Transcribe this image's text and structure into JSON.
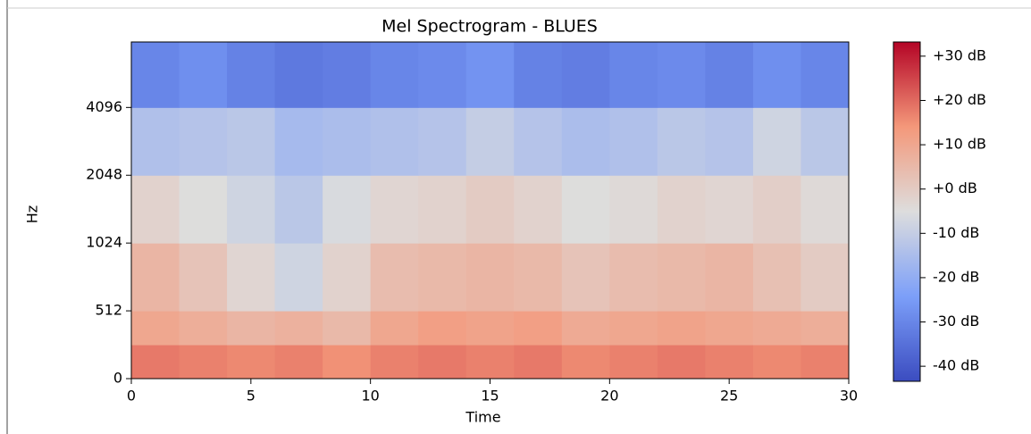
{
  "chart_data": {
    "type": "heatmap",
    "title": "Mel Spectrogram - BLUES",
    "x_label": "Time",
    "y_label": "Hz",
    "xlim": [
      0,
      30
    ],
    "xticks": [
      0,
      5,
      10,
      15,
      20,
      25,
      30
    ],
    "ylim": [
      0,
      8000
    ],
    "yticks": [
      0,
      512,
      1024,
      2048,
      4096
    ],
    "yscale": "mel",
    "x_edges": [
      0,
      2,
      4,
      6,
      8,
      10,
      12,
      14,
      16,
      18,
      20,
      22,
      24,
      26,
      28,
      30
    ],
    "y_edges": [
      0,
      256,
      512,
      1024,
      2048,
      4096,
      8000
    ],
    "z": [
      [
        18,
        17,
        16,
        17,
        15,
        17,
        18,
        17,
        18,
        16,
        17,
        18,
        17,
        16,
        17
      ],
      [
        10,
        8,
        6,
        7,
        5,
        10,
        12,
        11,
        12,
        9,
        10,
        11,
        10,
        9,
        8
      ],
      [
        6,
        2,
        -3,
        -8,
        -2,
        4,
        5,
        6,
        5,
        2,
        4,
        5,
        6,
        3,
        0
      ],
      [
        -2,
        -5,
        -8,
        -12,
        -6,
        -3,
        -2,
        0,
        -2,
        -5,
        -4,
        -2,
        -3,
        -1,
        -4
      ],
      [
        -14,
        -13,
        -12,
        -16,
        -15,
        -14,
        -13,
        -10,
        -13,
        -15,
        -14,
        -12,
        -13,
        -8,
        -12
      ],
      [
        -30,
        -28,
        -31,
        -33,
        -32,
        -30,
        -29,
        -27,
        -31,
        -32,
        -30,
        -29,
        -31,
        -28,
        -30
      ]
    ],
    "cmap": "coolwarm",
    "clim": [
      -43.4,
      33.2
    ],
    "cticks": [
      {
        "value": 30,
        "label": "+30 dB"
      },
      {
        "value": 20,
        "label": "+20 dB"
      },
      {
        "value": 10,
        "label": "+10 dB"
      },
      {
        "value": 0,
        "label": "+0 dB"
      },
      {
        "value": -10,
        "label": "-10 dB"
      },
      {
        "value": -20,
        "label": "-20 dB"
      },
      {
        "value": -30,
        "label": "-30 dB"
      },
      {
        "value": -40,
        "label": "-40 dB"
      }
    ]
  }
}
